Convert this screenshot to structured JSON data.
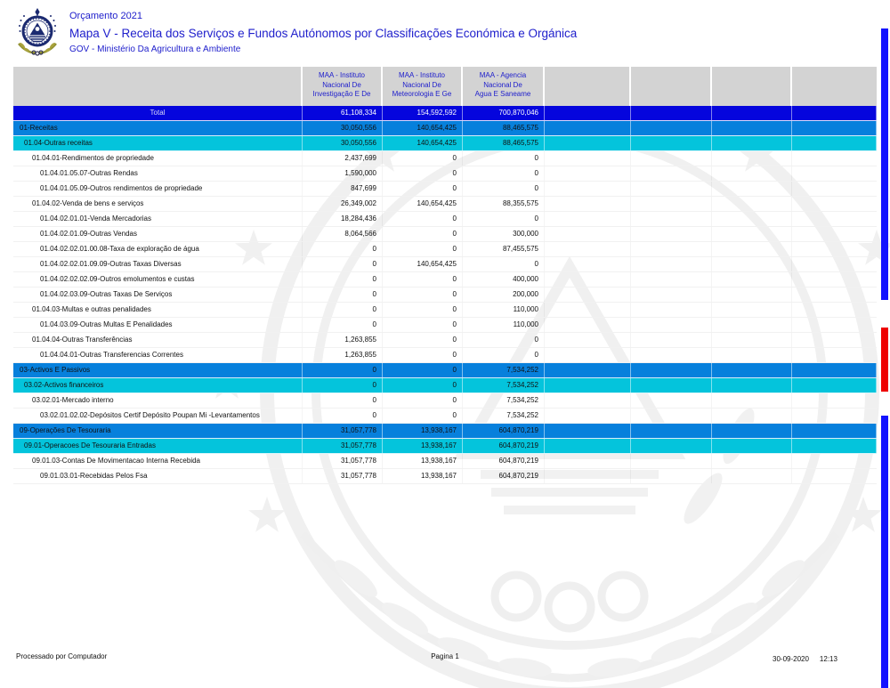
{
  "header": {
    "budget_label": "Orçamento 2021",
    "title": "Mapa V - Receita dos Serviços e Fundos Autónomos por Classificações Económica e Orgánica",
    "org": "GOV - Ministério Da Agricultura e Ambiente",
    "logo_icon": "cape-verde-coat-of-arms"
  },
  "table": {
    "columns": [
      {
        "name": "row-label-column-header",
        "lines": []
      },
      {
        "name": "column-header-instituto-investigacao",
        "lines": [
          "MAA - Instituto",
          "Nacional De",
          "Investigação E De"
        ]
      },
      {
        "name": "column-header-instituto-meteorologia",
        "lines": [
          "MAA - Instituto",
          "Nacional De",
          "Meteorologia E Ge"
        ]
      },
      {
        "name": "column-header-agencia-agua",
        "lines": [
          "MAA - Agencia",
          "Nacional De",
          "Agua E Saneame"
        ]
      },
      {
        "name": "column-header-empty-1",
        "lines": []
      },
      {
        "name": "column-header-empty-2",
        "lines": []
      },
      {
        "name": "column-header-empty-3",
        "lines": []
      },
      {
        "name": "column-header-empty-4",
        "lines": []
      }
    ],
    "rows": [
      {
        "label": "Total",
        "level": "total",
        "values": [
          "61,108,334",
          "154,592,592",
          "700,870,046"
        ]
      },
      {
        "label": "01-Receitas",
        "level": 0,
        "values": [
          "30,050,556",
          "140,654,425",
          "88,465,575"
        ]
      },
      {
        "label": "01.04-Outras receitas",
        "level": 1,
        "values": [
          "30,050,556",
          "140,654,425",
          "88,465,575"
        ]
      },
      {
        "label": "01.04.01-Rendimentos de propriedade",
        "level": 2,
        "values": [
          "2,437,699",
          "0",
          "0"
        ]
      },
      {
        "label": "01.04.01.05.07-Outras Rendas",
        "level": 3,
        "values": [
          "1,590,000",
          "0",
          "0"
        ]
      },
      {
        "label": "01.04.01.05.09-Outros rendimentos de propriedade",
        "level": 3,
        "values": [
          "847,699",
          "0",
          "0"
        ]
      },
      {
        "label": "01.04.02-Venda de bens e serviços",
        "level": 2,
        "values": [
          "26,349,002",
          "140,654,425",
          "88,355,575"
        ]
      },
      {
        "label": "01.04.02.01.01-Venda Mercadorias",
        "level": 3,
        "values": [
          "18,284,436",
          "0",
          "0"
        ]
      },
      {
        "label": "01.04.02.01.09-Outras Vendas",
        "level": 3,
        "values": [
          "8,064,566",
          "0",
          "300,000"
        ]
      },
      {
        "label": "01.04.02.02.01.00.08-Taxa de exploração de água",
        "level": 3,
        "values": [
          "0",
          "0",
          "87,455,575"
        ]
      },
      {
        "label": "01.04.02.02.01.09.09-Outras Taxas Diversas",
        "level": 3,
        "values": [
          "0",
          "140,654,425",
          "0"
        ]
      },
      {
        "label": "01.04.02.02.02.09-Outros emolumentos e custas",
        "level": 3,
        "values": [
          "0",
          "0",
          "400,000"
        ]
      },
      {
        "label": "01.04.02.03.09-Outras Taxas De Serviços",
        "level": 3,
        "values": [
          "0",
          "0",
          "200,000"
        ]
      },
      {
        "label": "01.04.03-Multas e outras penalidades",
        "level": 2,
        "values": [
          "0",
          "0",
          "110,000"
        ]
      },
      {
        "label": "01.04.03.09-Outras Multas E Penalidades",
        "level": 3,
        "values": [
          "0",
          "0",
          "110,000"
        ]
      },
      {
        "label": "01.04.04-Outras Transferências",
        "level": 2,
        "values": [
          "1,263,855",
          "0",
          "0"
        ]
      },
      {
        "label": "01.04.04.01-Outras Transferencias Correntes",
        "level": 3,
        "values": [
          "1,263,855",
          "0",
          "0"
        ]
      },
      {
        "label": "03-Activos E Passivos",
        "level": 0,
        "values": [
          "0",
          "0",
          "7,534,252"
        ]
      },
      {
        "label": "03.02-Activos financeiros",
        "level": 1,
        "values": [
          "0",
          "0",
          "7,534,252"
        ]
      },
      {
        "label": "03.02.01-Mercado interno",
        "level": 2,
        "values": [
          "0",
          "0",
          "7,534,252"
        ]
      },
      {
        "label": "03.02.01.02.02-Depósitos Certif Depósito Poupan Mi -Levantamentos",
        "level": 3,
        "values": [
          "0",
          "0",
          "7,534,252"
        ]
      },
      {
        "label": "09-Operações De Tesouraria",
        "level": 0,
        "values": [
          "31,057,778",
          "13,938,167",
          "604,870,219"
        ]
      },
      {
        "label": "09.01-Operacoes De Tesouraria Entradas",
        "level": 1,
        "values": [
          "31,057,778",
          "13,938,167",
          "604,870,219"
        ]
      },
      {
        "label": "09.01.03-Contas De Movimentacao Interna Recebida",
        "level": 2,
        "values": [
          "31,057,778",
          "13,938,167",
          "604,870,219"
        ]
      },
      {
        "label": "09.01.03.01-Recebidas Pelos Fsa",
        "level": 3,
        "values": [
          "31,057,778",
          "13,938,167",
          "604,870,219"
        ]
      }
    ]
  },
  "footer": {
    "left": "Processado por Computador",
    "center": "Pagina 1",
    "date": "30-09-2020",
    "time": "12:13"
  },
  "colors": {
    "title_blue": "#2020cc",
    "header_gray": "#d3d3d3",
    "total_row_blue": "#0505dd",
    "section_row_blue": "#0780dc",
    "subsection_row_cyan": "#04c4dc",
    "edge_bar_blue": "#1212ff",
    "edge_bar_red": "#ee0000"
  },
  "icons": {
    "logo": "cape-verde-emblem",
    "watermark": "cape-verde-coat-of-arms-watermark"
  }
}
